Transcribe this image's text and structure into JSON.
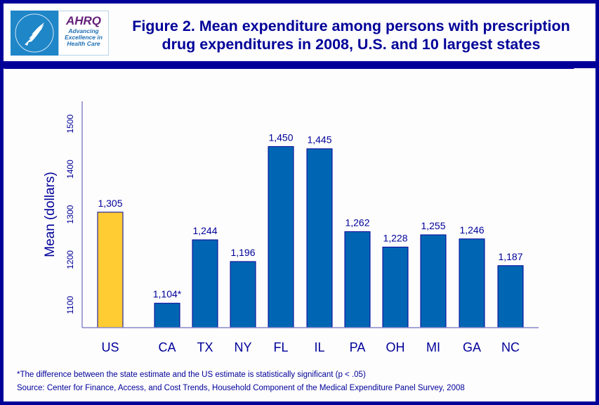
{
  "header": {
    "logo_hhs": "HHS seal",
    "logo_ahrq_word": "AHRQ",
    "logo_ahrq_tagline": [
      "Advancing",
      "Excellence in",
      "Health Care"
    ],
    "title_line1": "Figure 2.  Mean expenditure among persons with prescription",
    "title_line2": "drug expenditures in 2008, U.S. and 10 largest states"
  },
  "colors": {
    "frame": "#000099",
    "bar_us": "#ffcc33",
    "bar_state": "#0066b3",
    "bar_outline": "#000099",
    "text": "#000099",
    "axis": "#8888cc"
  },
  "chart_data": {
    "type": "bar",
    "title": "Figure 2. Mean expenditure among persons with prescription drug expenditures in 2008, U.S. and 10 largest states",
    "xlabel": "",
    "ylabel": "Mean (dollars)",
    "ylim": [
      1050,
      1550
    ],
    "yticks": [
      1100,
      1200,
      1300,
      1400,
      1500
    ],
    "grid": false,
    "legend": "none",
    "categories": [
      "US",
      "CA",
      "TX",
      "NY",
      "FL",
      "IL",
      "PA",
      "OH",
      "MI",
      "GA",
      "NC"
    ],
    "values": [
      1305,
      1104,
      1244,
      1196,
      1450,
      1445,
      1262,
      1228,
      1255,
      1246,
      1187
    ],
    "data_labels": [
      "1,305",
      "1,104*",
      "1,244",
      "1,196",
      "1,450",
      "1,445",
      "1,262",
      "1,228",
      "1,255",
      "1,246",
      "1,187"
    ],
    "highlight": [
      "US"
    ]
  },
  "footnotes": {
    "significance": "*The difference between the state estimate and the US estimate is statistically significant (p < .05)",
    "source": "Source: Center for Finance, Access, and Cost Trends, Household Component of the Medical Expenditure Panel Survey, 2008"
  }
}
